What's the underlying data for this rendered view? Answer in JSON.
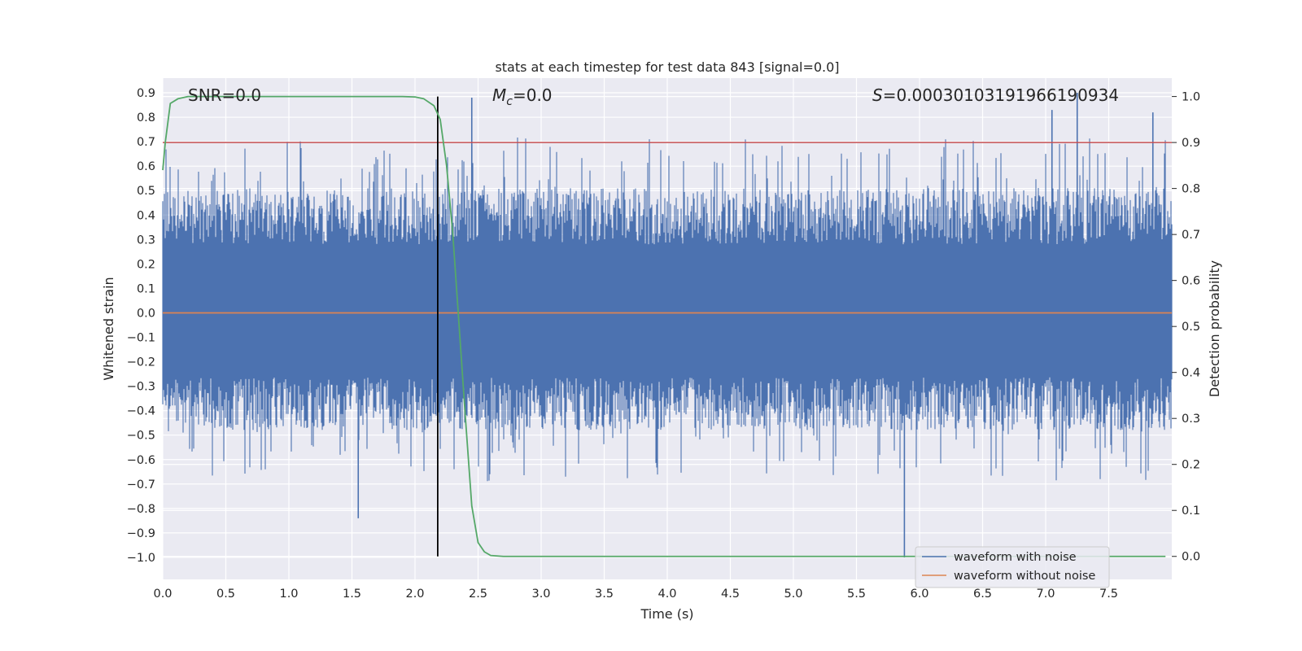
{
  "chart_data": {
    "type": "line",
    "title": "stats at each timestep for test data 843 [signal=0.0]",
    "xlabel": "Time (s)",
    "ylabel": "Whitened strain",
    "y2label": "Detection probability",
    "xlim": [
      0.0,
      8.0
    ],
    "ylim": [
      -1.09,
      0.96
    ],
    "y2lim": [
      -0.05,
      1.04
    ],
    "xticks": [
      "0.0",
      "0.5",
      "1.0",
      "1.5",
      "2.0",
      "2.5",
      "3.0",
      "3.5",
      "4.0",
      "4.5",
      "5.0",
      "5.5",
      "6.0",
      "6.5",
      "7.0",
      "7.5"
    ],
    "yticks": [
      "−1.0",
      "−0.9",
      "−0.8",
      "−0.7",
      "−0.6",
      "−0.5",
      "−0.4",
      "−0.3",
      "−0.2",
      "−0.1",
      "0.0",
      "0.1",
      "0.2",
      "0.3",
      "0.4",
      "0.5",
      "0.6",
      "0.7",
      "0.8",
      "0.9"
    ],
    "y2ticks": [
      "0.0",
      "0.1",
      "0.2",
      "0.3",
      "0.4",
      "0.5",
      "0.6",
      "0.7",
      "0.8",
      "0.9",
      "1.0"
    ],
    "grid": true,
    "legend_location": "lower-right",
    "annotations": {
      "snr_label": "SNR=0.0",
      "mc_symbol": "M",
      "mc_subscript": "c",
      "mc_value": "=0.0",
      "s_symbol": "S",
      "s_value": "=0.00030103191966190934"
    },
    "series": [
      {
        "name": "waveform with noise",
        "color": "#4c72b0",
        "description": "noisy whitened strain, roughly within -0.75..0.75 with spikes",
        "envelope": {
          "typical_abs_max": 0.6,
          "spikes": [
            {
              "x": 1.55,
              "y": -0.84
            },
            {
              "x": 2.45,
              "y": 0.88
            },
            {
              "x": 5.88,
              "y": -1.0
            },
            {
              "x": 7.25,
              "y": 0.9
            },
            {
              "x": 7.05,
              "y": 0.83
            },
            {
              "x": 7.85,
              "y": 0.82
            }
          ]
        }
      },
      {
        "name": "waveform without noise",
        "color": "#dd8452",
        "x": [
          0.0,
          8.0
        ],
        "y": [
          0.0,
          0.0
        ]
      },
      {
        "name": "detection probability",
        "axis": "right",
        "color": "#55a868",
        "x": [
          0.0,
          0.02,
          0.06,
          0.12,
          0.2,
          0.4,
          1.0,
          1.5,
          1.9,
          2.0,
          2.07,
          2.15,
          2.2,
          2.25,
          2.3,
          2.35,
          2.4,
          2.45,
          2.5,
          2.55,
          2.6,
          2.7,
          3.0,
          5.0,
          7.0,
          7.95
        ],
        "y": [
          0.84,
          0.9,
          0.985,
          0.995,
          1.0,
          1.0,
          1.0,
          1.0,
          1.0,
          0.999,
          0.995,
          0.98,
          0.95,
          0.85,
          0.7,
          0.5,
          0.3,
          0.11,
          0.03,
          0.01,
          0.002,
          0.0,
          0.0,
          0.0,
          0.0,
          0.0
        ]
      },
      {
        "name": "threshold",
        "axis": "right",
        "color": "#c44e52",
        "x": [
          0.0,
          8.0
        ],
        "y": [
          0.9,
          0.9
        ]
      },
      {
        "name": "detection time marker",
        "axis": "right",
        "color": "#000000",
        "vertical_x": 2.18,
        "y": [
          0.0,
          1.0
        ]
      }
    ]
  }
}
